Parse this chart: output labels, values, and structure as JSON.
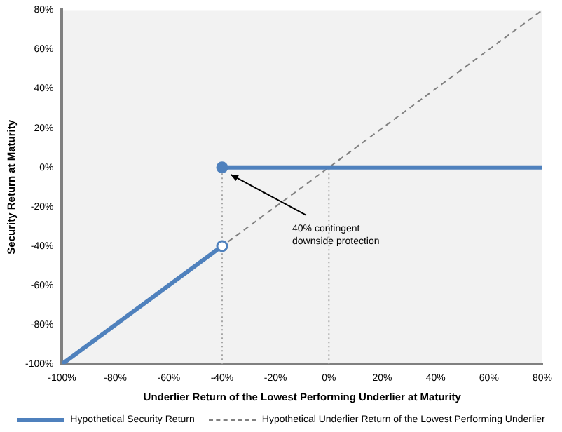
{
  "chart_data": {
    "type": "line",
    "xlabel": "Underlier Return of the Lowest Performing Underlier at Maturity",
    "ylabel": "Security Return at Maturity",
    "xlim": [
      -100,
      80
    ],
    "ylim": [
      -100,
      80
    ],
    "xticks": [
      {
        "value": -100,
        "label": "-100%"
      },
      {
        "value": -80,
        "label": "-80%"
      },
      {
        "value": -60,
        "label": "-60%"
      },
      {
        "value": -40,
        "label": "-40%"
      },
      {
        "value": -20,
        "label": "-20%"
      },
      {
        "value": 0,
        "label": "0%"
      },
      {
        "value": 20,
        "label": "20%"
      },
      {
        "value": 40,
        "label": "40%"
      },
      {
        "value": 60,
        "label": "60%"
      },
      {
        "value": 80,
        "label": "80%"
      }
    ],
    "yticks": [
      {
        "value": -100,
        "label": "-100%"
      },
      {
        "value": -80,
        "label": "-80%"
      },
      {
        "value": -60,
        "label": "-60%"
      },
      {
        "value": -40,
        "label": "-40%"
      },
      {
        "value": -20,
        "label": "-20%"
      },
      {
        "value": 0,
        "label": "0%"
      },
      {
        "value": 20,
        "label": "20%"
      },
      {
        "value": 40,
        "label": "40%"
      },
      {
        "value": 60,
        "label": "60%"
      },
      {
        "value": 80,
        "label": "80%"
      }
    ],
    "grid": false,
    "legend": "bottom",
    "series": [
      {
        "name": "Hypothetical Security Return",
        "color": "#4f81bd",
        "x": [
          -100,
          -40
        ],
        "values": [
          -100,
          -40
        ],
        "marker": "circle",
        "line_style": "solid"
      },
      {
        "color": "#4f81bd",
        "x": [
          -40,
          80
        ],
        "values": [
          0,
          0
        ],
        "marker": "circle",
        "line_style": "solid"
      },
      {
        "name": "Hypothetical Underlier Return of the Lowest Performing Underlier",
        "color": "#808080",
        "x": [
          -100,
          80
        ],
        "values": [
          -100,
          80
        ],
        "marker": "none",
        "line_style": "dashed"
      },
      {
        "color": "#a6a6a6",
        "x": [
          -40,
          -40
        ],
        "values": [
          -100,
          0
        ],
        "marker": "none",
        "line_style": "dotted"
      },
      {
        "color": "#a6a6a6",
        "x": [
          0,
          0
        ],
        "values": [
          -100,
          0
        ],
        "marker": "none",
        "line_style": "dotted"
      }
    ],
    "annotations": [
      {
        "text": "40% contingent downside protection",
        "x": -40,
        "y": 0
      }
    ]
  }
}
